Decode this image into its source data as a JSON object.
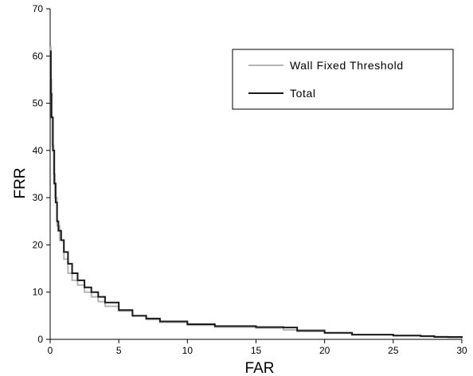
{
  "chart_data": {
    "type": "line",
    "title": "",
    "xlabel": "FAR",
    "ylabel": "FRR",
    "xlim": [
      0,
      30
    ],
    "ylim": [
      0,
      70
    ],
    "x_ticks": [
      0,
      5,
      10,
      15,
      20,
      25,
      30
    ],
    "y_ticks": [
      0,
      10,
      20,
      30,
      40,
      50,
      60,
      70
    ],
    "grid": false,
    "legend_position": "top-right",
    "series": [
      {
        "name": "Wall Fixed Threshold",
        "color": "#b5b5b5",
        "points": [
          [
            0,
            62
          ],
          [
            0.05,
            55
          ],
          [
            0.1,
            47
          ],
          [
            0.15,
            41
          ],
          [
            0.25,
            35
          ],
          [
            0.35,
            30
          ],
          [
            0.5,
            24
          ],
          [
            0.7,
            21
          ],
          [
            1,
            17
          ],
          [
            1.3,
            14
          ],
          [
            1.6,
            12.5
          ],
          [
            2,
            11.5
          ],
          [
            2.5,
            10
          ],
          [
            3,
            9
          ],
          [
            3.5,
            8
          ],
          [
            4,
            7
          ],
          [
            5,
            6
          ],
          [
            6,
            5
          ],
          [
            7,
            4.2
          ],
          [
            8,
            3.6
          ],
          [
            10,
            3
          ],
          [
            12,
            2.6
          ],
          [
            15,
            2.4
          ],
          [
            17,
            2.0
          ],
          [
            20,
            1.3
          ],
          [
            22,
            1.0
          ],
          [
            25,
            0.8
          ],
          [
            27,
            0.6
          ],
          [
            29,
            0.4
          ],
          [
            30,
            0.2
          ]
        ]
      },
      {
        "name": "Total",
        "color": "#1a1a1a",
        "points": [
          [
            0,
            61
          ],
          [
            0.05,
            52
          ],
          [
            0.1,
            47
          ],
          [
            0.2,
            40
          ],
          [
            0.3,
            33
          ],
          [
            0.4,
            29
          ],
          [
            0.5,
            25
          ],
          [
            0.6,
            23
          ],
          [
            0.8,
            21
          ],
          [
            1,
            18.5
          ],
          [
            1.3,
            16
          ],
          [
            1.6,
            14
          ],
          [
            2,
            12.5
          ],
          [
            2.5,
            11
          ],
          [
            3,
            10
          ],
          [
            3.5,
            9
          ],
          [
            4,
            7.8
          ],
          [
            5,
            6.2
          ],
          [
            6,
            5
          ],
          [
            7,
            4.4
          ],
          [
            8,
            3.8
          ],
          [
            10,
            3.2
          ],
          [
            12,
            2.8
          ],
          [
            15,
            2.6
          ],
          [
            17,
            2.5
          ],
          [
            18,
            1.8
          ],
          [
            20,
            1.4
          ],
          [
            22,
            1.0
          ],
          [
            25,
            0.8
          ],
          [
            27,
            0.7
          ],
          [
            28,
            0.5
          ],
          [
            30,
            0.3
          ]
        ]
      }
    ]
  }
}
